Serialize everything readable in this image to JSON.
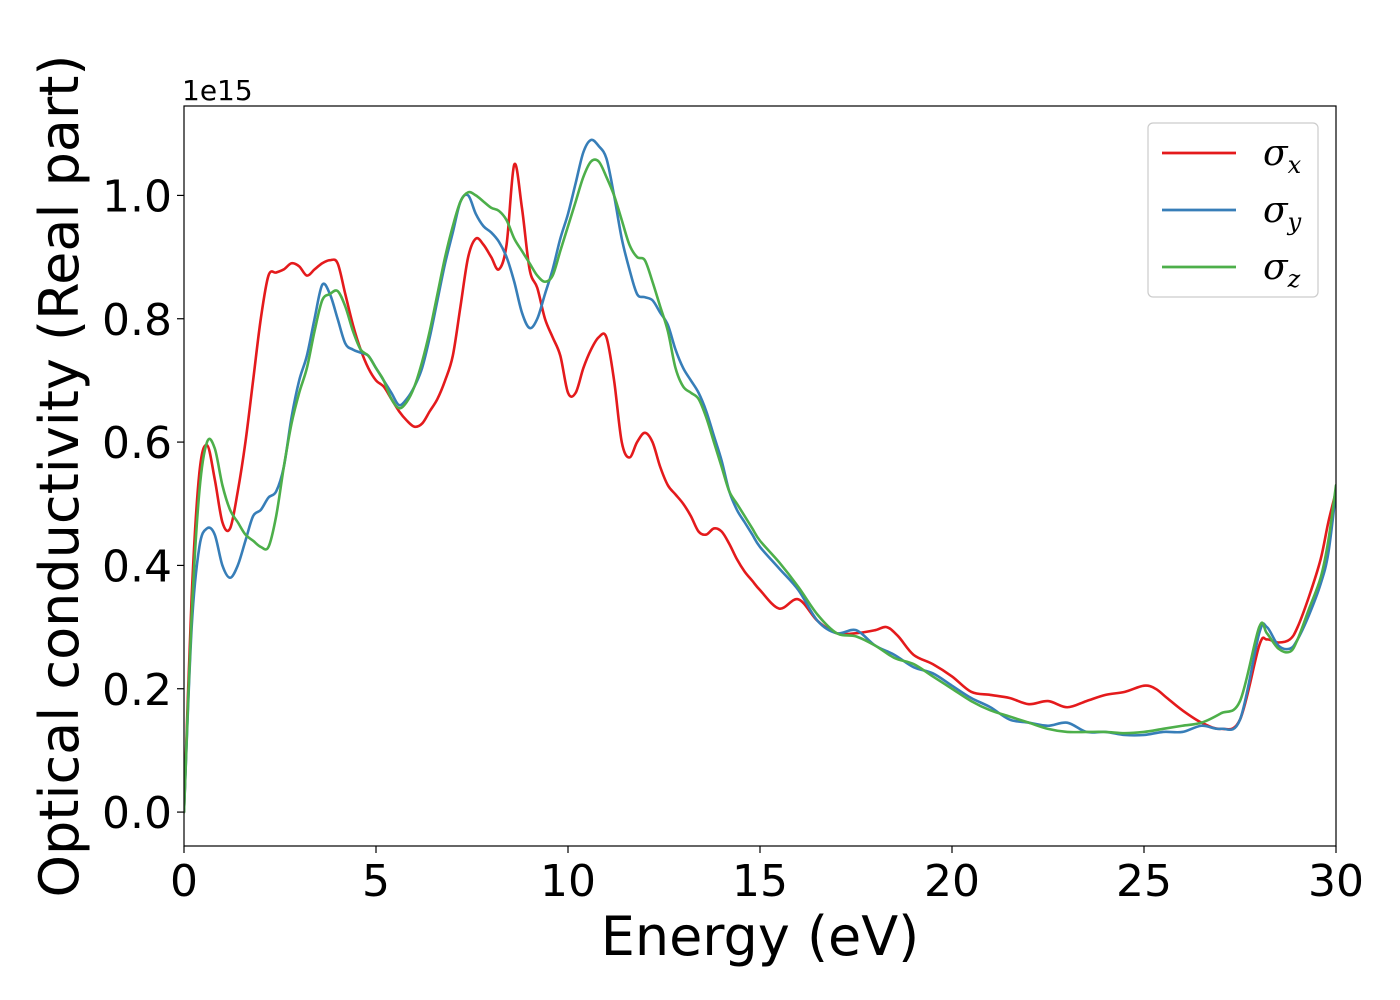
{
  "chart_data": {
    "type": "line",
    "xlabel": "Energy (eV)",
    "ylabel": "Optical conductivity (Real part)",
    "y_offset_label": "1e15",
    "xlim": [
      0,
      30
    ],
    "ylim": [
      -0.055,
      1.145
    ],
    "xticks": [
      0,
      5,
      10,
      15,
      20,
      25,
      30
    ],
    "xtick_labels": [
      "0",
      "5",
      "10",
      "15",
      "20",
      "25",
      "30"
    ],
    "yticks": [
      0.0,
      0.2,
      0.4,
      0.6,
      0.8,
      1.0
    ],
    "ytick_labels": [
      "0.0",
      "0.2",
      "0.4",
      "0.6",
      "0.8",
      "1.0"
    ],
    "grid": false,
    "legend_position": "top-right",
    "series": [
      {
        "name": "σx",
        "symbol": "σ",
        "subscript": "x",
        "color": "#e41a1c",
        "x": [
          0,
          0.2,
          0.4,
          0.6,
          0.8,
          1.0,
          1.2,
          1.4,
          1.6,
          1.8,
          2.0,
          2.2,
          2.4,
          2.6,
          2.8,
          3.0,
          3.2,
          3.4,
          3.6,
          3.8,
          4.0,
          4.2,
          4.4,
          4.6,
          4.8,
          5.0,
          5.2,
          5.4,
          5.6,
          5.8,
          6.0,
          6.2,
          6.4,
          6.6,
          6.8,
          7.0,
          7.2,
          7.4,
          7.6,
          7.8,
          8.0,
          8.2,
          8.4,
          8.6,
          8.8,
          9.0,
          9.2,
          9.4,
          9.6,
          9.8,
          10.0,
          10.2,
          10.4,
          10.6,
          10.8,
          11.0,
          11.2,
          11.4,
          11.6,
          11.8,
          12.0,
          12.2,
          12.4,
          12.6,
          12.8,
          13.0,
          13.2,
          13.4,
          13.6,
          13.8,
          14.0,
          14.2,
          14.4,
          14.6,
          14.8,
          15.0,
          15.5,
          16.0,
          16.5,
          17.0,
          17.5,
          18.0,
          18.3,
          18.6,
          19.0,
          19.5,
          20.0,
          20.5,
          21.0,
          21.5,
          22.0,
          22.5,
          23.0,
          23.5,
          24.0,
          24.5,
          25.0,
          25.3,
          25.6,
          26.0,
          26.5,
          27.0,
          27.5,
          28.0,
          28.2,
          28.5,
          28.8,
          29.0,
          29.3,
          29.6,
          29.8,
          30.0
        ],
        "y": [
          0.0,
          0.35,
          0.55,
          0.595,
          0.54,
          0.47,
          0.46,
          0.52,
          0.6,
          0.7,
          0.8,
          0.87,
          0.875,
          0.88,
          0.89,
          0.885,
          0.87,
          0.88,
          0.89,
          0.895,
          0.89,
          0.84,
          0.79,
          0.75,
          0.72,
          0.7,
          0.69,
          0.67,
          0.65,
          0.635,
          0.625,
          0.63,
          0.65,
          0.67,
          0.7,
          0.74,
          0.82,
          0.9,
          0.93,
          0.92,
          0.9,
          0.88,
          0.92,
          1.05,
          0.98,
          0.88,
          0.85,
          0.8,
          0.77,
          0.74,
          0.68,
          0.68,
          0.72,
          0.75,
          0.77,
          0.77,
          0.7,
          0.6,
          0.575,
          0.6,
          0.615,
          0.6,
          0.56,
          0.53,
          0.515,
          0.5,
          0.48,
          0.455,
          0.45,
          0.46,
          0.455,
          0.435,
          0.41,
          0.39,
          0.375,
          0.36,
          0.33,
          0.345,
          0.31,
          0.29,
          0.29,
          0.295,
          0.3,
          0.285,
          0.255,
          0.24,
          0.22,
          0.195,
          0.19,
          0.185,
          0.175,
          0.18,
          0.17,
          0.18,
          0.19,
          0.195,
          0.205,
          0.2,
          0.185,
          0.165,
          0.145,
          0.135,
          0.15,
          0.27,
          0.28,
          0.275,
          0.28,
          0.3,
          0.35,
          0.41,
          0.47,
          0.52
        ]
      },
      {
        "name": "σy",
        "symbol": "σ",
        "subscript": "y",
        "color": "#377eb8",
        "x": [
          0,
          0.2,
          0.4,
          0.6,
          0.8,
          1.0,
          1.2,
          1.4,
          1.6,
          1.8,
          2.0,
          2.2,
          2.4,
          2.6,
          2.8,
          3.0,
          3.2,
          3.4,
          3.6,
          3.8,
          4.0,
          4.2,
          4.4,
          4.6,
          4.8,
          5.0,
          5.2,
          5.4,
          5.6,
          5.8,
          6.0,
          6.2,
          6.4,
          6.6,
          6.8,
          7.0,
          7.2,
          7.4,
          7.6,
          7.8,
          8.0,
          8.2,
          8.4,
          8.6,
          8.8,
          9.0,
          9.2,
          9.4,
          9.6,
          9.8,
          10.0,
          10.2,
          10.4,
          10.6,
          10.8,
          11.0,
          11.2,
          11.4,
          11.6,
          11.8,
          12.0,
          12.2,
          12.4,
          12.6,
          12.8,
          13.0,
          13.2,
          13.4,
          13.6,
          13.8,
          14.0,
          14.2,
          14.4,
          14.6,
          14.8,
          15.0,
          15.5,
          16.0,
          16.5,
          17.0,
          17.5,
          18.0,
          18.5,
          19.0,
          19.5,
          20.0,
          20.5,
          21.0,
          21.5,
          22.0,
          22.5,
          23.0,
          23.5,
          24.0,
          24.5,
          25.0,
          25.5,
          26.0,
          26.5,
          27.0,
          27.5,
          28.0,
          28.2,
          28.5,
          28.8,
          29.0,
          29.3,
          29.6,
          29.8,
          30.0
        ],
        "y": [
          0.0,
          0.3,
          0.43,
          0.46,
          0.45,
          0.4,
          0.38,
          0.4,
          0.44,
          0.48,
          0.49,
          0.51,
          0.52,
          0.56,
          0.64,
          0.7,
          0.74,
          0.8,
          0.855,
          0.84,
          0.8,
          0.76,
          0.75,
          0.745,
          0.74,
          0.72,
          0.7,
          0.68,
          0.66,
          0.67,
          0.69,
          0.72,
          0.77,
          0.83,
          0.89,
          0.94,
          0.99,
          1.0,
          0.97,
          0.95,
          0.94,
          0.925,
          0.9,
          0.86,
          0.81,
          0.785,
          0.8,
          0.84,
          0.88,
          0.93,
          0.97,
          1.02,
          1.07,
          1.09,
          1.08,
          1.06,
          1.0,
          0.93,
          0.88,
          0.84,
          0.835,
          0.83,
          0.81,
          0.79,
          0.75,
          0.72,
          0.7,
          0.68,
          0.65,
          0.61,
          0.57,
          0.52,
          0.49,
          0.47,
          0.45,
          0.43,
          0.395,
          0.36,
          0.31,
          0.29,
          0.295,
          0.27,
          0.255,
          0.235,
          0.225,
          0.205,
          0.185,
          0.17,
          0.15,
          0.145,
          0.14,
          0.145,
          0.13,
          0.13,
          0.125,
          0.125,
          0.13,
          0.13,
          0.14,
          0.135,
          0.15,
          0.29,
          0.3,
          0.27,
          0.265,
          0.28,
          0.32,
          0.37,
          0.42,
          0.52
        ]
      },
      {
        "name": "σz",
        "symbol": "σ",
        "subscript": "z",
        "color": "#4daf4a",
        "x": [
          0,
          0.2,
          0.4,
          0.6,
          0.8,
          1.0,
          1.2,
          1.4,
          1.6,
          1.8,
          2.0,
          2.2,
          2.4,
          2.6,
          2.8,
          3.0,
          3.2,
          3.4,
          3.6,
          3.8,
          4.0,
          4.2,
          4.4,
          4.6,
          4.8,
          5.0,
          5.2,
          5.4,
          5.6,
          5.8,
          6.0,
          6.2,
          6.4,
          6.6,
          6.8,
          7.0,
          7.2,
          7.4,
          7.6,
          7.8,
          8.0,
          8.2,
          8.4,
          8.6,
          8.8,
          9.0,
          9.2,
          9.4,
          9.6,
          9.8,
          10.0,
          10.2,
          10.4,
          10.6,
          10.8,
          11.0,
          11.2,
          11.4,
          11.6,
          11.8,
          12.0,
          12.2,
          12.4,
          12.6,
          12.8,
          13.0,
          13.2,
          13.4,
          13.6,
          13.8,
          14.0,
          14.2,
          14.4,
          14.6,
          14.8,
          15.0,
          15.5,
          16.0,
          16.5,
          17.0,
          17.5,
          18.0,
          18.5,
          19.0,
          19.5,
          20.0,
          20.5,
          21.0,
          21.5,
          22.0,
          22.5,
          23.0,
          23.5,
          24.0,
          24.5,
          25.0,
          25.5,
          26.0,
          26.5,
          27.0,
          27.5,
          28.0,
          28.2,
          28.5,
          28.8,
          29.0,
          29.3,
          29.6,
          29.8,
          30.0
        ],
        "y": [
          0.0,
          0.32,
          0.52,
          0.6,
          0.59,
          0.53,
          0.49,
          0.47,
          0.45,
          0.44,
          0.43,
          0.43,
          0.48,
          0.56,
          0.63,
          0.68,
          0.72,
          0.78,
          0.83,
          0.84,
          0.845,
          0.82,
          0.78,
          0.75,
          0.74,
          0.72,
          0.7,
          0.67,
          0.655,
          0.665,
          0.69,
          0.73,
          0.78,
          0.84,
          0.9,
          0.95,
          0.99,
          1.005,
          1.0,
          0.99,
          0.98,
          0.975,
          0.96,
          0.93,
          0.91,
          0.89,
          0.87,
          0.86,
          0.87,
          0.91,
          0.95,
          0.99,
          1.03,
          1.055,
          1.055,
          1.03,
          1.0,
          0.96,
          0.92,
          0.9,
          0.895,
          0.86,
          0.82,
          0.78,
          0.72,
          0.69,
          0.68,
          0.67,
          0.64,
          0.6,
          0.56,
          0.52,
          0.5,
          0.48,
          0.46,
          0.44,
          0.405,
          0.365,
          0.32,
          0.29,
          0.285,
          0.27,
          0.25,
          0.24,
          0.22,
          0.2,
          0.18,
          0.165,
          0.155,
          0.145,
          0.135,
          0.13,
          0.13,
          0.13,
          0.128,
          0.13,
          0.135,
          0.14,
          0.145,
          0.16,
          0.18,
          0.3,
          0.29,
          0.265,
          0.26,
          0.28,
          0.33,
          0.38,
          0.44,
          0.53
        ]
      }
    ]
  }
}
